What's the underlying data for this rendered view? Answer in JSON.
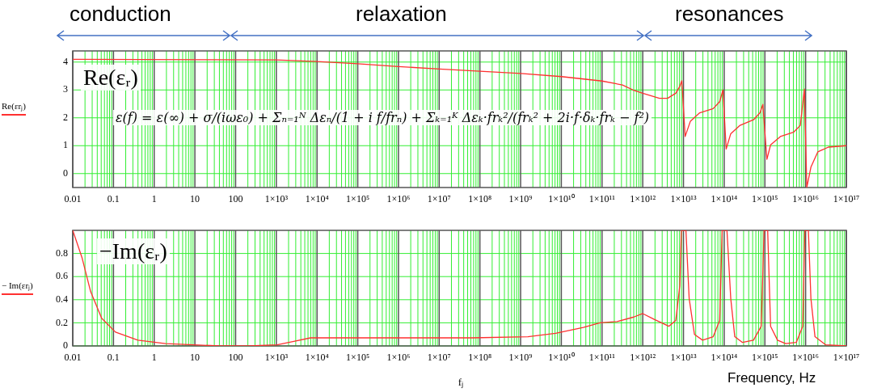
{
  "chart_data": [
    {
      "type": "line",
      "ylabel": "Re(εrⱼ)",
      "log": "x",
      "grid": true,
      "annotations": [
        "conduction",
        "relaxation",
        "resonances",
        "Re(εᵣ)",
        "ε(f) = ε(∞) + σ/(iωε₀) + Σₙ₌₁ᴺ Δεₙ/(1 + i f/frₙ) + Σₖ₌₁ᴷ Δεₖ·frₖ²/(frₖ² + 2i·f·δₖ·frₖ − f²)"
      ],
      "xlim": [
        0.01,
        1e+17
      ],
      "xticks": [
        0.01,
        0.1,
        1,
        10,
        100,
        {
          "value": 1000.0,
          "label": "1×10³"
        },
        {
          "value": 10000.0,
          "label": "1×10⁴"
        },
        {
          "value": 100000.0,
          "label": "1×10⁵"
        },
        {
          "value": 1000000.0,
          "label": "1×10⁶"
        },
        {
          "value": 10000000.0,
          "label": "1×10⁷"
        },
        {
          "value": 100000000.0,
          "label": "1×10⁸"
        },
        {
          "value": 1000000000.0,
          "label": "1×10⁹"
        },
        {
          "value": 10000000000.0,
          "label": "1×10¹⁰"
        },
        {
          "value": 100000000000.0,
          "label": "1×10¹¹"
        },
        {
          "value": 1000000000000.0,
          "label": "1×10¹²"
        },
        {
          "value": 10000000000000.0,
          "label": "1×10¹³"
        },
        {
          "value": 100000000000000.0,
          "label": "1×10¹⁴"
        },
        {
          "value": 1000000000000000.0,
          "label": "1×10¹⁵"
        },
        {
          "value": 1e+16,
          "label": "1×10¹⁶"
        },
        {
          "value": 1e+17,
          "label": "1×10¹⁷"
        }
      ],
      "ylim": [
        -0.5,
        4.4
      ],
      "yticks": [
        0,
        1,
        2,
        3,
        4
      ],
      "series": [
        {
          "color": "#ff3030",
          "x": [
            0.01,
            1000,
            10000.0,
            100000.0,
            1000000.0,
            10000000.0,
            100000000.0,
            1000000000.0,
            10000000000.0,
            100000000000.0,
            316000000000.0,
            575000000000.0,
            1000000000000.0,
            2570000000000.0,
            4070000000000.0,
            6460000000000.0,
            8130000000000.0,
            9120000000000.0,
            11000000000000.0,
            14800000000000.0,
            25100000000000.0,
            53700000000000.0,
            77600000000000.0,
            93300000000000.0,
            112000000000000.0,
            145000000000000.0,
            245000000000000.0,
            525000000000000.0,
            759000000000000.0,
            891000000000000.0,
            1120000000000000.0,
            1380000000000000.0,
            2400000000000000.0,
            5010000000000000.0,
            7410000000000000.0,
            9330000000000000.0,
            1.07e+16,
            1.35e+16,
            2e+16,
            3.63e+16,
            1e+17
          ],
          "values": [
            4.1,
            4.08,
            4.02,
            3.94,
            3.84,
            3.75,
            3.67,
            3.59,
            3.48,
            3.32,
            3.18,
            3.0,
            2.88,
            2.7,
            2.7,
            2.88,
            3.13,
            3.33,
            1.33,
            1.88,
            2.18,
            2.33,
            2.58,
            3.0,
            0.88,
            1.43,
            1.73,
            1.93,
            2.18,
            2.48,
            0.51,
            1.03,
            1.33,
            1.48,
            1.73,
            3.03,
            -0.5,
            0.23,
            0.78,
            0.95,
            1.0
          ]
        }
      ]
    },
    {
      "type": "line",
      "ylabel": "− Im(εrⱼ)",
      "xlabel": "fⱼ",
      "log": "x",
      "grid": true,
      "annotations": [
        "−Im(εᵣ)",
        "Frequency, Hz"
      ],
      "xlim": [
        0.01,
        1e+17
      ],
      "xticks": [
        0.01,
        0.1,
        1,
        10,
        100,
        {
          "value": 1000.0,
          "label": "1×10³"
        },
        {
          "value": 10000.0,
          "label": "1×10⁴"
        },
        {
          "value": 100000.0,
          "label": "1×10⁵"
        },
        {
          "value": 1000000.0,
          "label": "1×10⁶"
        },
        {
          "value": 10000000.0,
          "label": "1×10⁷"
        },
        {
          "value": 100000000.0,
          "label": "1×10⁸"
        },
        {
          "value": 1000000000.0,
          "label": "1×10⁹"
        },
        {
          "value": 10000000000.0,
          "label": "1×10¹⁰"
        },
        {
          "value": 100000000000.0,
          "label": "1×10¹¹"
        },
        {
          "value": 1000000000000.0,
          "label": "1×10¹²"
        },
        {
          "value": 10000000000000.0,
          "label": "1×10¹³"
        },
        {
          "value": 100000000000000.0,
          "label": "1×10¹⁴"
        },
        {
          "value": 1000000000000000.0,
          "label": "1×10¹⁵"
        },
        {
          "value": 1e+16,
          "label": "1×10¹⁶"
        },
        {
          "value": 1e+17,
          "label": "1×10¹⁷"
        }
      ],
      "ylim": [
        0,
        1
      ],
      "yticks": [
        0,
        0.2,
        0.4,
        0.6,
        0.8
      ],
      "series": [
        {
          "color": "#ff3030",
          "x": [
            0.01,
            0.017,
            0.0275,
            0.0513,
            0.112,
            0.398,
            1.91,
            9.33,
            39.8,
            219,
            1047,
            2690,
            6920,
            117000.0,
            2750000.0,
            63100000.0,
            1510000000.0,
            7240000000.0,
            34700000000.0,
            89100000000.0,
            234000000000.0,
            603000000000.0,
            1000000000000.0,
            1910000000000.0,
            4370000000000.0,
            6460000000000.0,
            8130000000000.0,
            8910000000000.0,
            11500000000000.0,
            13800000000000.0,
            18600000000000.0,
            29500000000000.0,
            53700000000000.0,
            77600000000000.0,
            89100000000000.0,
            117000000000000.0,
            145000000000000.0,
            182000000000000.0,
            282000000000000.0,
            525000000000000.0,
            813000000000000.0,
            955000000000000.0,
            1170000000000000.0,
            1380000000000000.0,
            2040000000000000.0,
            3240000000000000.0,
            5890000000000000.0,
            8510000000000000.0,
            9550000000000000.0,
            1.17e+16,
            1.35e+16,
            1.7e+16,
            3.09e+16,
            1e+17
          ],
          "values": [
            1.0,
            0.76,
            0.47,
            0.24,
            0.12,
            0.05,
            0.02,
            0.01,
            0,
            0,
            0.01,
            0.04,
            0.07,
            0.07,
            0.07,
            0.07,
            0.08,
            0.11,
            0.16,
            0.2,
            0.21,
            0.25,
            0.28,
            0.23,
            0.17,
            0.22,
            0.52,
            1.0,
            1.0,
            0.41,
            0.1,
            0.05,
            0.08,
            0.22,
            1.0,
            1.0,
            0.41,
            0.08,
            0.03,
            0.05,
            0.17,
            1.0,
            1.0,
            0.17,
            0.05,
            0.02,
            0.03,
            0.17,
            1.0,
            1.0,
            0.41,
            0.08,
            0.01,
            0
          ]
        }
      ]
    }
  ]
}
